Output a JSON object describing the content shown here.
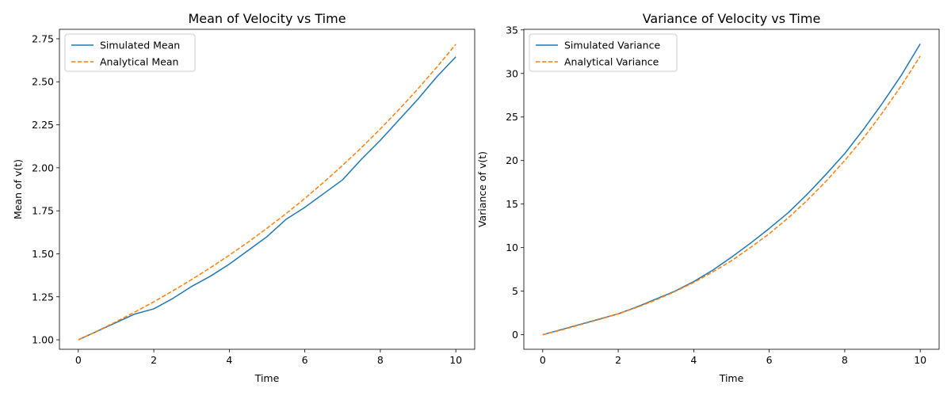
{
  "chart_data": [
    {
      "type": "line",
      "title": "Mean of Velocity vs Time",
      "xlabel": "Time",
      "ylabel": "Mean of v(t)",
      "xlim": [
        -0.5,
        10.5
      ],
      "ylim": [
        0.945,
        2.805
      ],
      "xticks": [
        0,
        2,
        4,
        6,
        8,
        10
      ],
      "xtick_labels": [
        "0",
        "2",
        "4",
        "6",
        "8",
        "10"
      ],
      "yticks": [
        1.0,
        1.25,
        1.5,
        1.75,
        2.0,
        2.25,
        2.5,
        2.75
      ],
      "ytick_labels": [
        "1.00",
        "1.25",
        "1.50",
        "1.75",
        "2.00",
        "2.25",
        "2.50",
        "2.75"
      ],
      "grid": false,
      "legend": "top-left",
      "series": [
        {
          "name": "Simulated Mean",
          "color": "#1f77b4",
          "style": "solid",
          "x": [
            0,
            0.5,
            1,
            1.5,
            2,
            2.5,
            3,
            3.5,
            4,
            4.5,
            5,
            5.5,
            6,
            6.5,
            7,
            7.5,
            8,
            8.5,
            9,
            9.5,
            10
          ],
          "y": [
            1.0,
            1.05,
            1.1,
            1.15,
            1.18,
            1.24,
            1.31,
            1.37,
            1.44,
            1.52,
            1.6,
            1.7,
            1.77,
            1.85,
            1.93,
            2.05,
            2.16,
            2.28,
            2.4,
            2.53,
            2.645
          ]
        },
        {
          "name": "Analytical Mean",
          "color": "#ff7f0e",
          "style": "dashed",
          "x": [
            0,
            0.5,
            1,
            1.5,
            2,
            2.5,
            3,
            3.5,
            4,
            4.5,
            5,
            5.5,
            6,
            6.5,
            7,
            7.5,
            8,
            8.5,
            9,
            9.5,
            10
          ],
          "y": [
            1.0,
            1.051,
            1.105,
            1.162,
            1.221,
            1.284,
            1.35,
            1.419,
            1.492,
            1.568,
            1.649,
            1.733,
            1.822,
            1.916,
            2.014,
            2.117,
            2.226,
            2.34,
            2.46,
            2.586,
            2.718
          ]
        }
      ]
    },
    {
      "type": "line",
      "title": "Variance of Velocity vs Time",
      "xlabel": "Time",
      "ylabel": "Variance of v(t)",
      "xlim": [
        -0.5,
        10.5
      ],
      "ylim": [
        -1.67,
        35.07
      ],
      "xticks": [
        0,
        2,
        4,
        6,
        8,
        10
      ],
      "xtick_labels": [
        "0",
        "2",
        "4",
        "6",
        "8",
        "10"
      ],
      "yticks": [
        0,
        5,
        10,
        15,
        20,
        25,
        30,
        35
      ],
      "ytick_labels": [
        "0",
        "5",
        "10",
        "15",
        "20",
        "25",
        "30",
        "35"
      ],
      "grid": false,
      "legend": "top-left",
      "series": [
        {
          "name": "Simulated Variance",
          "color": "#1f77b4",
          "style": "solid",
          "x": [
            0,
            0.5,
            1,
            1.5,
            2,
            2.5,
            3,
            3.5,
            4,
            4.5,
            5,
            5.5,
            6,
            6.5,
            7,
            7.5,
            8,
            8.5,
            9,
            9.5,
            10
          ],
          "y": [
            0,
            0.6,
            1.2,
            1.8,
            2.4,
            3.2,
            4.1,
            5.0,
            6.1,
            7.4,
            8.9,
            10.5,
            12.2,
            14.0,
            16.1,
            18.4,
            20.8,
            23.6,
            26.6,
            29.8,
            33.4
          ]
        },
        {
          "name": "Analytical Variance",
          "color": "#ff7f0e",
          "style": "dashed",
          "x": [
            0,
            0.5,
            1,
            1.5,
            2,
            2.5,
            3,
            3.5,
            4,
            4.5,
            5,
            5.5,
            6,
            6.5,
            7,
            7.5,
            8,
            8.5,
            9,
            9.5,
            10
          ],
          "y": [
            0,
            0.55,
            1.15,
            1.75,
            2.4,
            3.15,
            4.0,
            4.95,
            6.0,
            7.2,
            8.5,
            10.0,
            11.6,
            13.4,
            15.4,
            17.6,
            20.0,
            22.6,
            25.5,
            28.6,
            32.0
          ]
        }
      ]
    }
  ]
}
